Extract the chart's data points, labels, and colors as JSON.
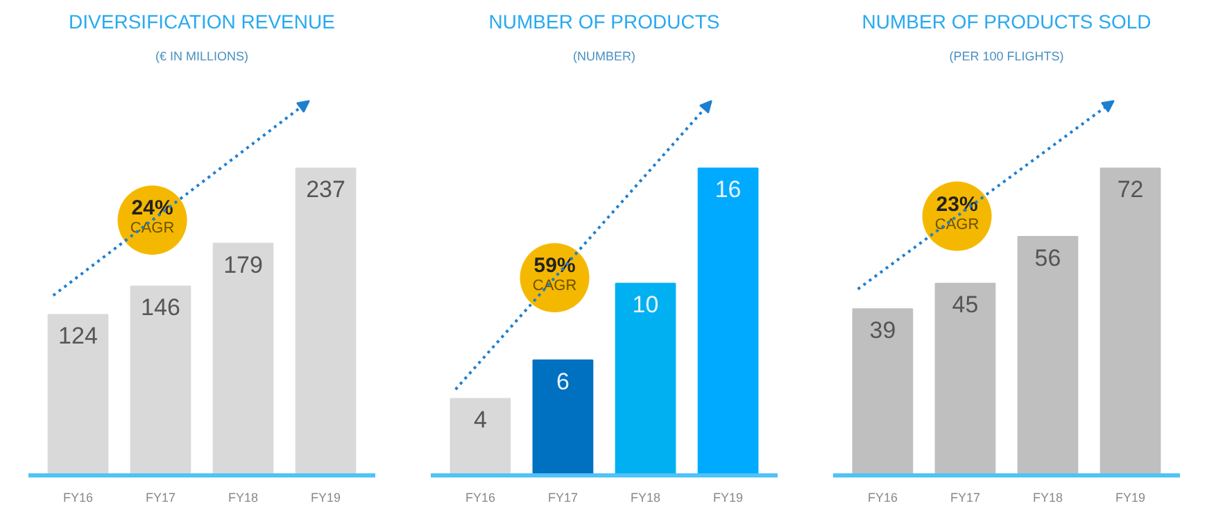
{
  "chart_data": [
    {
      "type": "bar",
      "title": "DIVERSIFICATION REVENUE",
      "subtitle": "(€ IN MILLIONS)",
      "categories": [
        "FY16",
        "FY17",
        "FY18",
        "FY19"
      ],
      "values": [
        124,
        146,
        179,
        237
      ],
      "colors": [
        "#d9d9d9",
        "#d9d9d9",
        "#d9d9d9",
        "#d9d9d9"
      ],
      "data_labels": true,
      "grid": false,
      "annotations": [
        "24% CAGR"
      ]
    },
    {
      "type": "bar",
      "title": "NUMBER OF PRODUCTS",
      "subtitle": "(NUMBER)",
      "categories": [
        "FY16",
        "FY17",
        "FY18",
        "FY19"
      ],
      "values": [
        4,
        6,
        10,
        16
      ],
      "colors": [
        "#d9d9d9",
        "#0070c0",
        "#00b0f0",
        "#00aaff"
      ],
      "data_labels": true,
      "grid": false,
      "annotations": [
        "59% CAGR"
      ]
    },
    {
      "type": "bar",
      "title": "NUMBER OF PRODUCTS SOLD",
      "subtitle": "(PER 100 FLIGHTS)",
      "categories": [
        "FY16",
        "FY17",
        "FY18",
        "FY19"
      ],
      "values": [
        39,
        45,
        56,
        72
      ],
      "colors": [
        "#bfbfbf",
        "#bfbfbf",
        "#bfbfbf",
        "#bfbfbf"
      ],
      "data_labels": true,
      "grid": false,
      "annotations": [
        "23% CAGR"
      ]
    }
  ]
}
